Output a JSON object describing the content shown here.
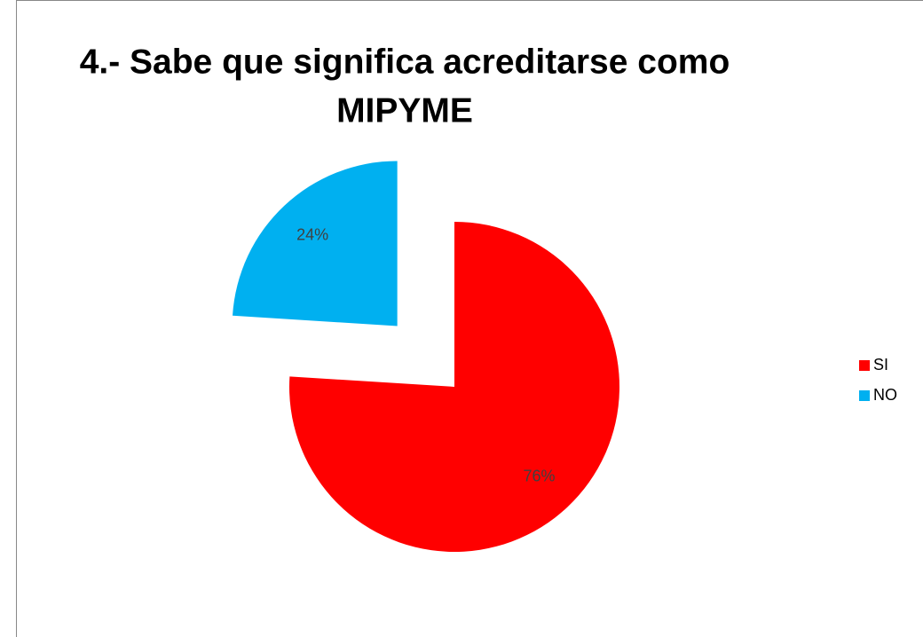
{
  "chart_data": {
    "type": "pie",
    "title": [
      "4.- Sabe que significa acreditarse como",
      "MIPYME"
    ],
    "categories": [
      "SI",
      "NO"
    ],
    "values": [
      76,
      24
    ],
    "value_labels": [
      "76%",
      "24%"
    ],
    "colors": [
      "#ff0000",
      "#00b0f0"
    ],
    "legend": "right"
  }
}
